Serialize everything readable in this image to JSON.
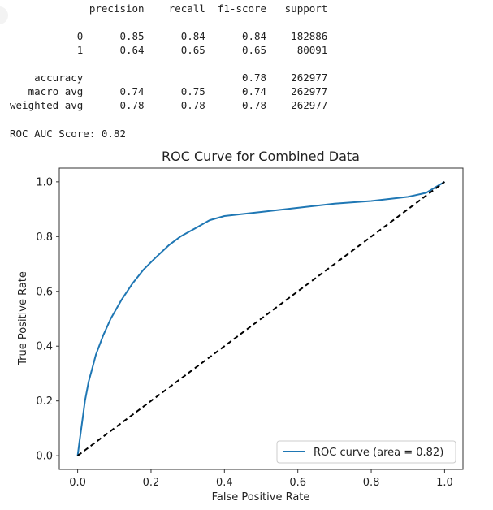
{
  "report": {
    "header": [
      "precision",
      "recall",
      "f1-score",
      "support"
    ],
    "rows": [
      {
        "label": "0",
        "precision": "0.85",
        "recall": "0.84",
        "f1": "0.84",
        "support": "182886"
      },
      {
        "label": "1",
        "precision": "0.64",
        "recall": "0.65",
        "f1": "0.65",
        "support": "80091"
      },
      {
        "label": "accuracy",
        "precision": "",
        "recall": "",
        "f1": "0.78",
        "support": "262977"
      },
      {
        "label": "macro avg",
        "precision": "0.74",
        "recall": "0.75",
        "f1": "0.74",
        "support": "262977"
      },
      {
        "label": "weighted avg",
        "precision": "0.78",
        "recall": "0.78",
        "f1": "0.78",
        "support": "262977"
      }
    ],
    "auc_text": "ROC AUC Score: 0.82"
  },
  "chart_data": {
    "type": "line",
    "title": "ROC Curve for Combined Data",
    "xlabel": "False Positive Rate",
    "ylabel": "True Positive Rate",
    "xlim": [
      -0.05,
      1.05
    ],
    "ylim": [
      -0.05,
      1.05
    ],
    "xticks": [
      "0.0",
      "0.2",
      "0.4",
      "0.6",
      "0.8",
      "1.0"
    ],
    "yticks": [
      "0.0",
      "0.2",
      "0.4",
      "0.6",
      "0.8",
      "1.0"
    ],
    "grid": false,
    "legend_position": "lower-right",
    "series": [
      {
        "name": "ROC curve (area = 0.82)",
        "color": "#1f77b4",
        "style": "solid",
        "x": [
          0.0,
          0.002,
          0.005,
          0.01,
          0.015,
          0.02,
          0.03,
          0.04,
          0.05,
          0.07,
          0.09,
          0.12,
          0.15,
          0.18,
          0.21,
          0.25,
          0.28,
          0.32,
          0.36,
          0.4,
          0.5,
          0.6,
          0.7,
          0.8,
          0.9,
          0.95,
          1.0
        ],
        "y": [
          0.0,
          0.02,
          0.05,
          0.1,
          0.15,
          0.2,
          0.27,
          0.32,
          0.37,
          0.44,
          0.5,
          0.57,
          0.63,
          0.68,
          0.72,
          0.77,
          0.8,
          0.83,
          0.86,
          0.875,
          0.89,
          0.905,
          0.92,
          0.93,
          0.945,
          0.96,
          1.0
        ]
      },
      {
        "name": "",
        "color": "#000000",
        "style": "dashed",
        "x": [
          0.0,
          1.0
        ],
        "y": [
          0.0,
          1.0
        ]
      }
    ]
  }
}
